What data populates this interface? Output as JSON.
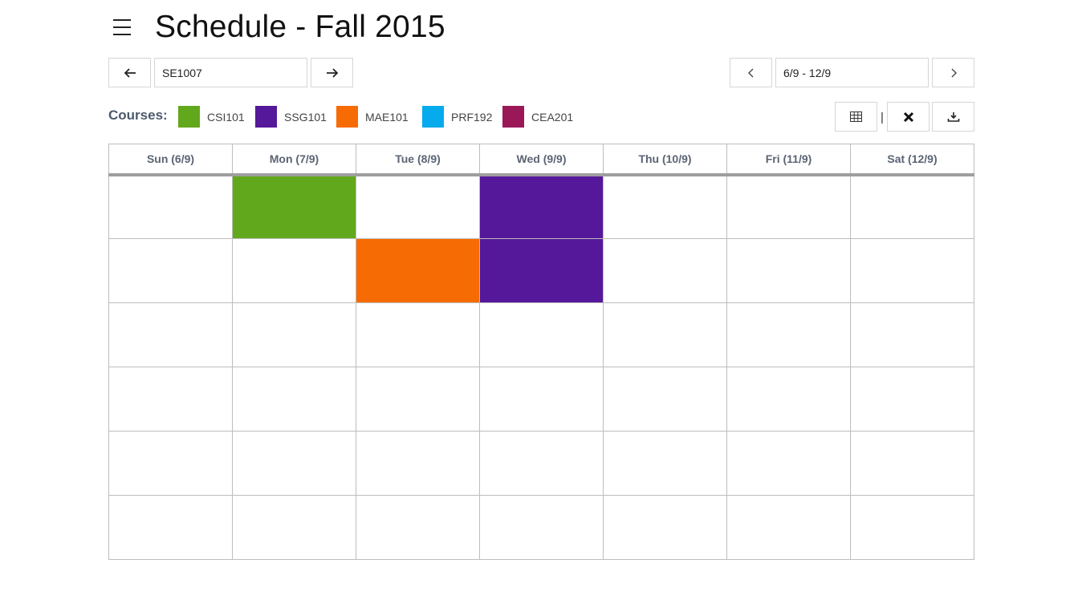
{
  "header": {
    "title": "Schedule - Fall 2015"
  },
  "class_nav": {
    "value": "SE1007"
  },
  "week_nav": {
    "value": "6/9 - 12/9"
  },
  "legend": {
    "label": "Courses:",
    "courses": [
      {
        "name": "CSI101",
        "color": "#62a81c"
      },
      {
        "name": "SSG101",
        "color": "#55189a"
      },
      {
        "name": "MAE101",
        "color": "#f76b05"
      },
      {
        "name": "PRF192",
        "color": "#05abec"
      },
      {
        "name": "CEA201",
        "color": "#9a1858"
      }
    ]
  },
  "toolbar": {
    "separator": "|"
  },
  "calendar": {
    "days": [
      "Sun (6/9)",
      "Mon (7/9)",
      "Tue (8/9)",
      "Wed (9/9)",
      "Thu (10/9)",
      "Fri (11/9)",
      "Sat (12/9)"
    ],
    "slots": [
      [
        "",
        "CSI101",
        "",
        "SSG101",
        "",
        "",
        ""
      ],
      [
        "",
        "",
        "MAE101",
        "SSG101",
        "",
        "",
        ""
      ],
      [
        "",
        "",
        "",
        "",
        "",
        "",
        ""
      ],
      [
        "",
        "",
        "",
        "",
        "",
        "",
        ""
      ],
      [
        "",
        "",
        "",
        "",
        "",
        "",
        ""
      ],
      [
        "",
        "",
        "",
        "",
        "",
        "",
        ""
      ]
    ]
  }
}
